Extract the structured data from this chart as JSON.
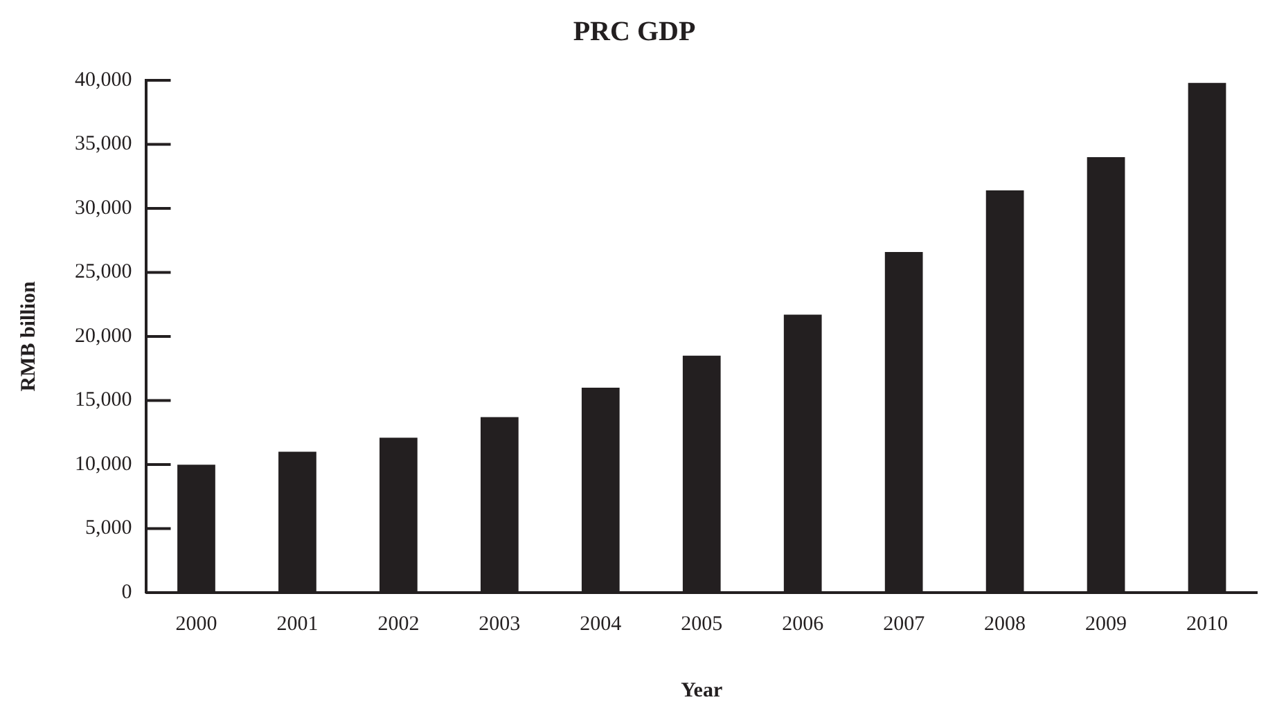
{
  "chart_data": {
    "type": "bar",
    "title": "PRC GDP",
    "xlabel": "Year",
    "ylabel": "RMB billion",
    "categories": [
      "2000",
      "2001",
      "2002",
      "2003",
      "2004",
      "2005",
      "2006",
      "2007",
      "2008",
      "2009",
      "2010"
    ],
    "values": [
      9980,
      11000,
      12100,
      13700,
      16000,
      18500,
      21700,
      26600,
      31400,
      34000,
      39800
    ],
    "color": "#231f20",
    "ylim": [
      0,
      40000
    ],
    "yticks": [
      {
        "value": 0,
        "label": "0"
      },
      {
        "value": 5000,
        "label": "5,000"
      },
      {
        "value": 10000,
        "label": "10,000"
      },
      {
        "value": 15000,
        "label": "15,000"
      },
      {
        "value": 20000,
        "label": "20,000"
      },
      {
        "value": 25000,
        "label": "25,000"
      },
      {
        "value": 30000,
        "label": "30,000"
      },
      {
        "value": 35000,
        "label": "35,000"
      },
      {
        "value": 40000,
        "label": "40,000"
      }
    ],
    "grid": false,
    "legend": false
  }
}
